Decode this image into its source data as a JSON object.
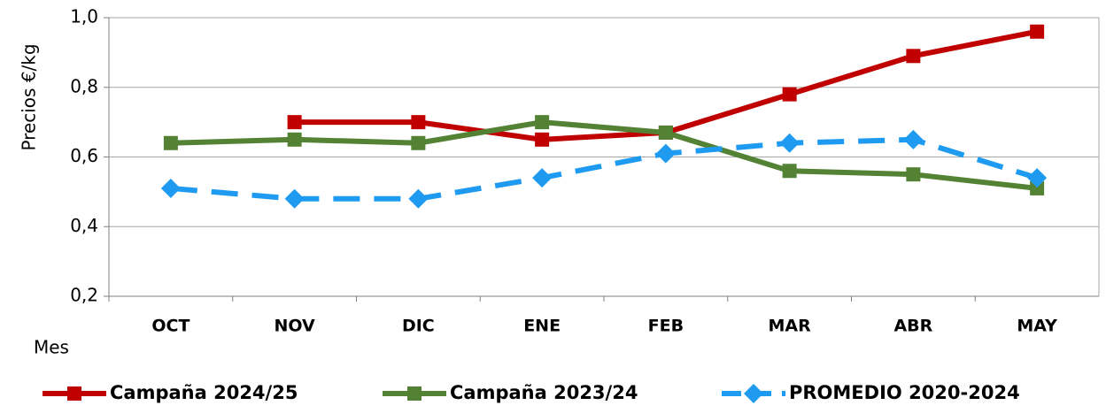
{
  "chart_data": {
    "type": "line",
    "y_label": "Precios €/kg",
    "x_label": "Mes",
    "categories": [
      "OCT",
      "NOV",
      "DIC",
      "ENE",
      "FEB",
      "MAR",
      "ABR",
      "MAY"
    ],
    "series": [
      {
        "name": "Campaña 2024/25",
        "color": "#c00000",
        "marker": "square",
        "dashed": false,
        "values": [
          null,
          0.7,
          0.7,
          0.65,
          0.67,
          0.78,
          0.89,
          0.96
        ]
      },
      {
        "name": "Campaña 2023/24",
        "color": "#548235",
        "marker": "square",
        "dashed": false,
        "values": [
          0.64,
          0.65,
          0.64,
          0.7,
          0.67,
          0.56,
          0.55,
          0.51
        ]
      },
      {
        "name": "PROMEDIO 2020-2024",
        "color": "#1e9bf0",
        "marker": "diamond",
        "dashed": true,
        "values": [
          0.51,
          0.48,
          0.48,
          0.54,
          0.61,
          0.64,
          0.65,
          0.54
        ]
      }
    ],
    "ylim": [
      0.2,
      1.0
    ],
    "yticks": [
      {
        "value": 0.2,
        "label": "0,2"
      },
      {
        "value": 0.4,
        "label": "0,4"
      },
      {
        "value": 0.6,
        "label": "0,6"
      },
      {
        "value": 0.8,
        "label": "0,8"
      },
      {
        "value": 1.0,
        "label": "1,0"
      }
    ],
    "grid": true,
    "legend": "bottom"
  }
}
